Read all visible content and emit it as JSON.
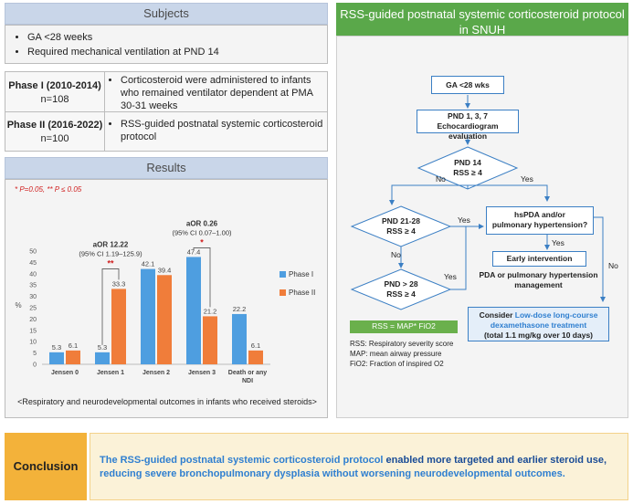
{
  "subjects": {
    "header": "Subjects",
    "items": [
      "GA <28 weeks",
      "Required mechanical ventilation at PND 14"
    ]
  },
  "phases": [
    {
      "title": "Phase I (2010-2014)",
      "n": "n=108",
      "desc": "Corticosteroid were administered to infants who remained ventilator dependent at PMA 30-31 weeks"
    },
    {
      "title": "Phase II (2016-2022)",
      "n": "n=100",
      "desc": "RSS-guided postnatal systemic corticosteroid protocol"
    }
  ],
  "results": {
    "header": "Results",
    "pvalue_note_1": "* P=0.05, ",
    "pvalue_note_2": "** P ≤ 0.05",
    "caption": "<Respiratory and neurodevelopmental outcomes in infants who received steroids>",
    "annotations": [
      {
        "title": "aOR 12.22",
        "ci": "(95% CI 1.19–125.9)",
        "stars": "**"
      },
      {
        "title": "aOR 0.26",
        "ci": "(95% CI 0.07–1.00)",
        "stars": "*"
      }
    ]
  },
  "chart_data": {
    "type": "bar",
    "categories": [
      "Jensen 0",
      "Jensen 1",
      "Jensen 2",
      "Jensen 3",
      "Death or any NDI"
    ],
    "series": [
      {
        "name": "Phase I",
        "values": [
          5.3,
          5.3,
          42.1,
          47.4,
          22.2
        ],
        "color": "#4e9ee0"
      },
      {
        "name": "Phase II",
        "values": [
          6.1,
          33.3,
          39.4,
          21.2,
          6.1
        ],
        "color": "#f07d3a"
      }
    ],
    "ylabel": "%",
    "ylim": [
      0,
      50
    ],
    "yticks": [
      "0",
      "5",
      "10",
      "15",
      "20",
      "25",
      "30",
      "35",
      "40",
      "45",
      "50"
    ],
    "legend": "right",
    "grid": false
  },
  "protocol": {
    "header": "RSS-guided postnatal systemic corticosteroid protocol in SNUH",
    "ga": "GA <28 wks",
    "pnd137_1": "PND 1, 3, 7",
    "pnd137_2": "Echocardiogram evaluation",
    "pnd14_1": "PND 14",
    "pnd14_2": "RSS ≥ 4",
    "no1": "No",
    "yes1": "Yes",
    "pnd2128_1": "PND 21-28",
    "pnd2128_2": "RSS ≥ 4",
    "yes2": "Yes",
    "no2": "No",
    "pnd28_1": "PND > 28",
    "pnd28_2": "RSS ≥ 4",
    "yes3": "Yes",
    "hspda_1": "hsPDA and/or",
    "hspda_2": "pulmonary hypertension?",
    "yes4": "Yes",
    "no3": "No",
    "early": "Early intervention",
    "pda_mgmt_1": "PDA or pulmonary hypertension",
    "pda_mgmt_2": "management",
    "consider_1": "Consider ",
    "consider_2": "Low-dose long-course",
    "consider_3": "dexamethasone treatment",
    "consider_4": "(total 1.1 mg/kg over 10 days)",
    "rss_formula": "RSS = MAP* FiO2",
    "abbrev": [
      "RSS: Respiratory severity score",
      "MAP: mean airway pressure",
      "FiO2: Fraction of inspired O2"
    ],
    "colors": {
      "green": "#5aa84a",
      "blue": "#3b7fc4"
    }
  },
  "conclusion": {
    "label": "Conclusion",
    "part1": "The RSS-guided postnatal systemic corticosteroid protocol",
    "part2": " enabled more targeted and earlier steroid use, ",
    "part3": "reducing severe bronchopulmonary dysplasia without worsening neurodevelopmental outcomes."
  }
}
